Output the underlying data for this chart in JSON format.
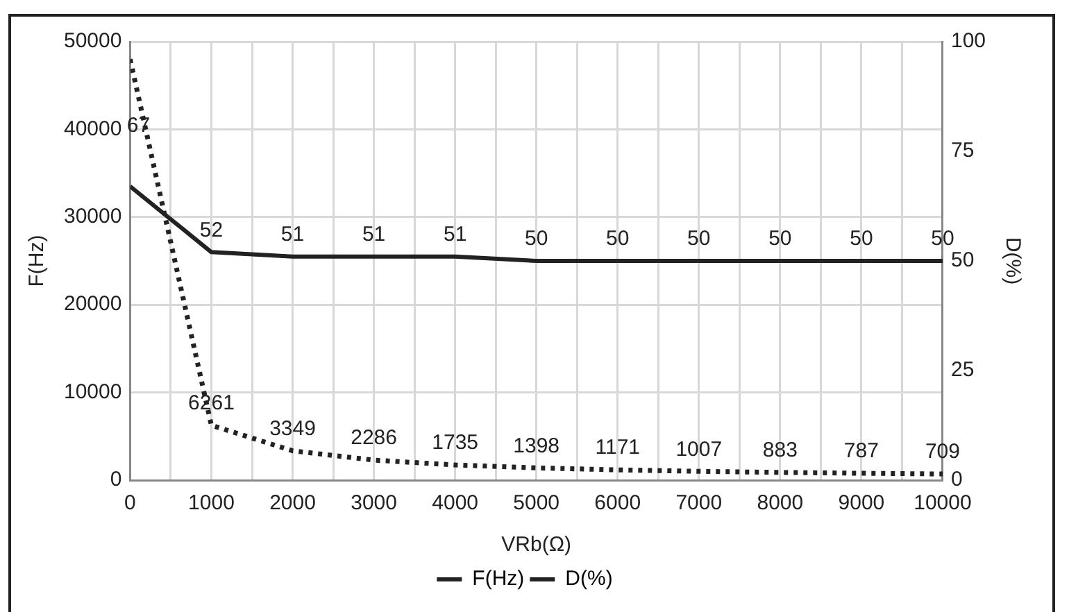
{
  "chart_data": {
    "type": "line",
    "xlabel": "VRb(Ω)",
    "ylabel": "F(Hz)",
    "y2label": "D(%)",
    "x": [
      0,
      1000,
      2000,
      3000,
      4000,
      5000,
      6000,
      7000,
      8000,
      9000,
      10000
    ],
    "series": [
      {
        "name": "F(Hz)",
        "color": "#222222",
        "line_style": "dotted",
        "values": [
          48000,
          6261,
          3349,
          2286,
          1735,
          1398,
          1171,
          1007,
          883,
          787,
          709
        ],
        "value_labels": [
          null,
          "6261",
          "3349",
          "2286",
          "1735",
          "1398",
          "1171",
          "1007",
          "883",
          "787",
          "709"
        ]
      },
      {
        "name": "D(%)",
        "color": "#222222",
        "line_style": "solid",
        "axis": "y2",
        "values": [
          67,
          52,
          51,
          51,
          51,
          50,
          50,
          50,
          50,
          50,
          50
        ],
        "value_labels": [
          "67",
          "52",
          "51",
          "51",
          "51",
          "50",
          "50",
          "50",
          "50",
          "50",
          "50"
        ]
      }
    ],
    "xlim": [
      0,
      10000
    ],
    "xticks": [
      0,
      {
        "value": 500,
        "label": null
      },
      1000,
      {
        "value": 1500,
        "label": null
      },
      2000,
      {
        "value": 2500,
        "label": null
      },
      3000,
      {
        "value": 3500,
        "label": null
      },
      4000,
      {
        "value": 4500,
        "label": null
      },
      5000,
      {
        "value": 5500,
        "label": null
      },
      6000,
      {
        "value": 6500,
        "label": null
      },
      7000,
      {
        "value": 7500,
        "label": null
      },
      8000,
      {
        "value": 8500,
        "label": null
      },
      9000,
      {
        "value": 9500,
        "label": null
      },
      10000
    ],
    "ylim": [
      0,
      50000
    ],
    "yticks": [
      0,
      10000,
      20000,
      30000,
      40000,
      50000
    ],
    "y2lim": [
      0,
      100
    ],
    "y2ticks": [
      0,
      25,
      50,
      75,
      100
    ],
    "grid": true,
    "legend": "bottom",
    "marker": "none"
  }
}
